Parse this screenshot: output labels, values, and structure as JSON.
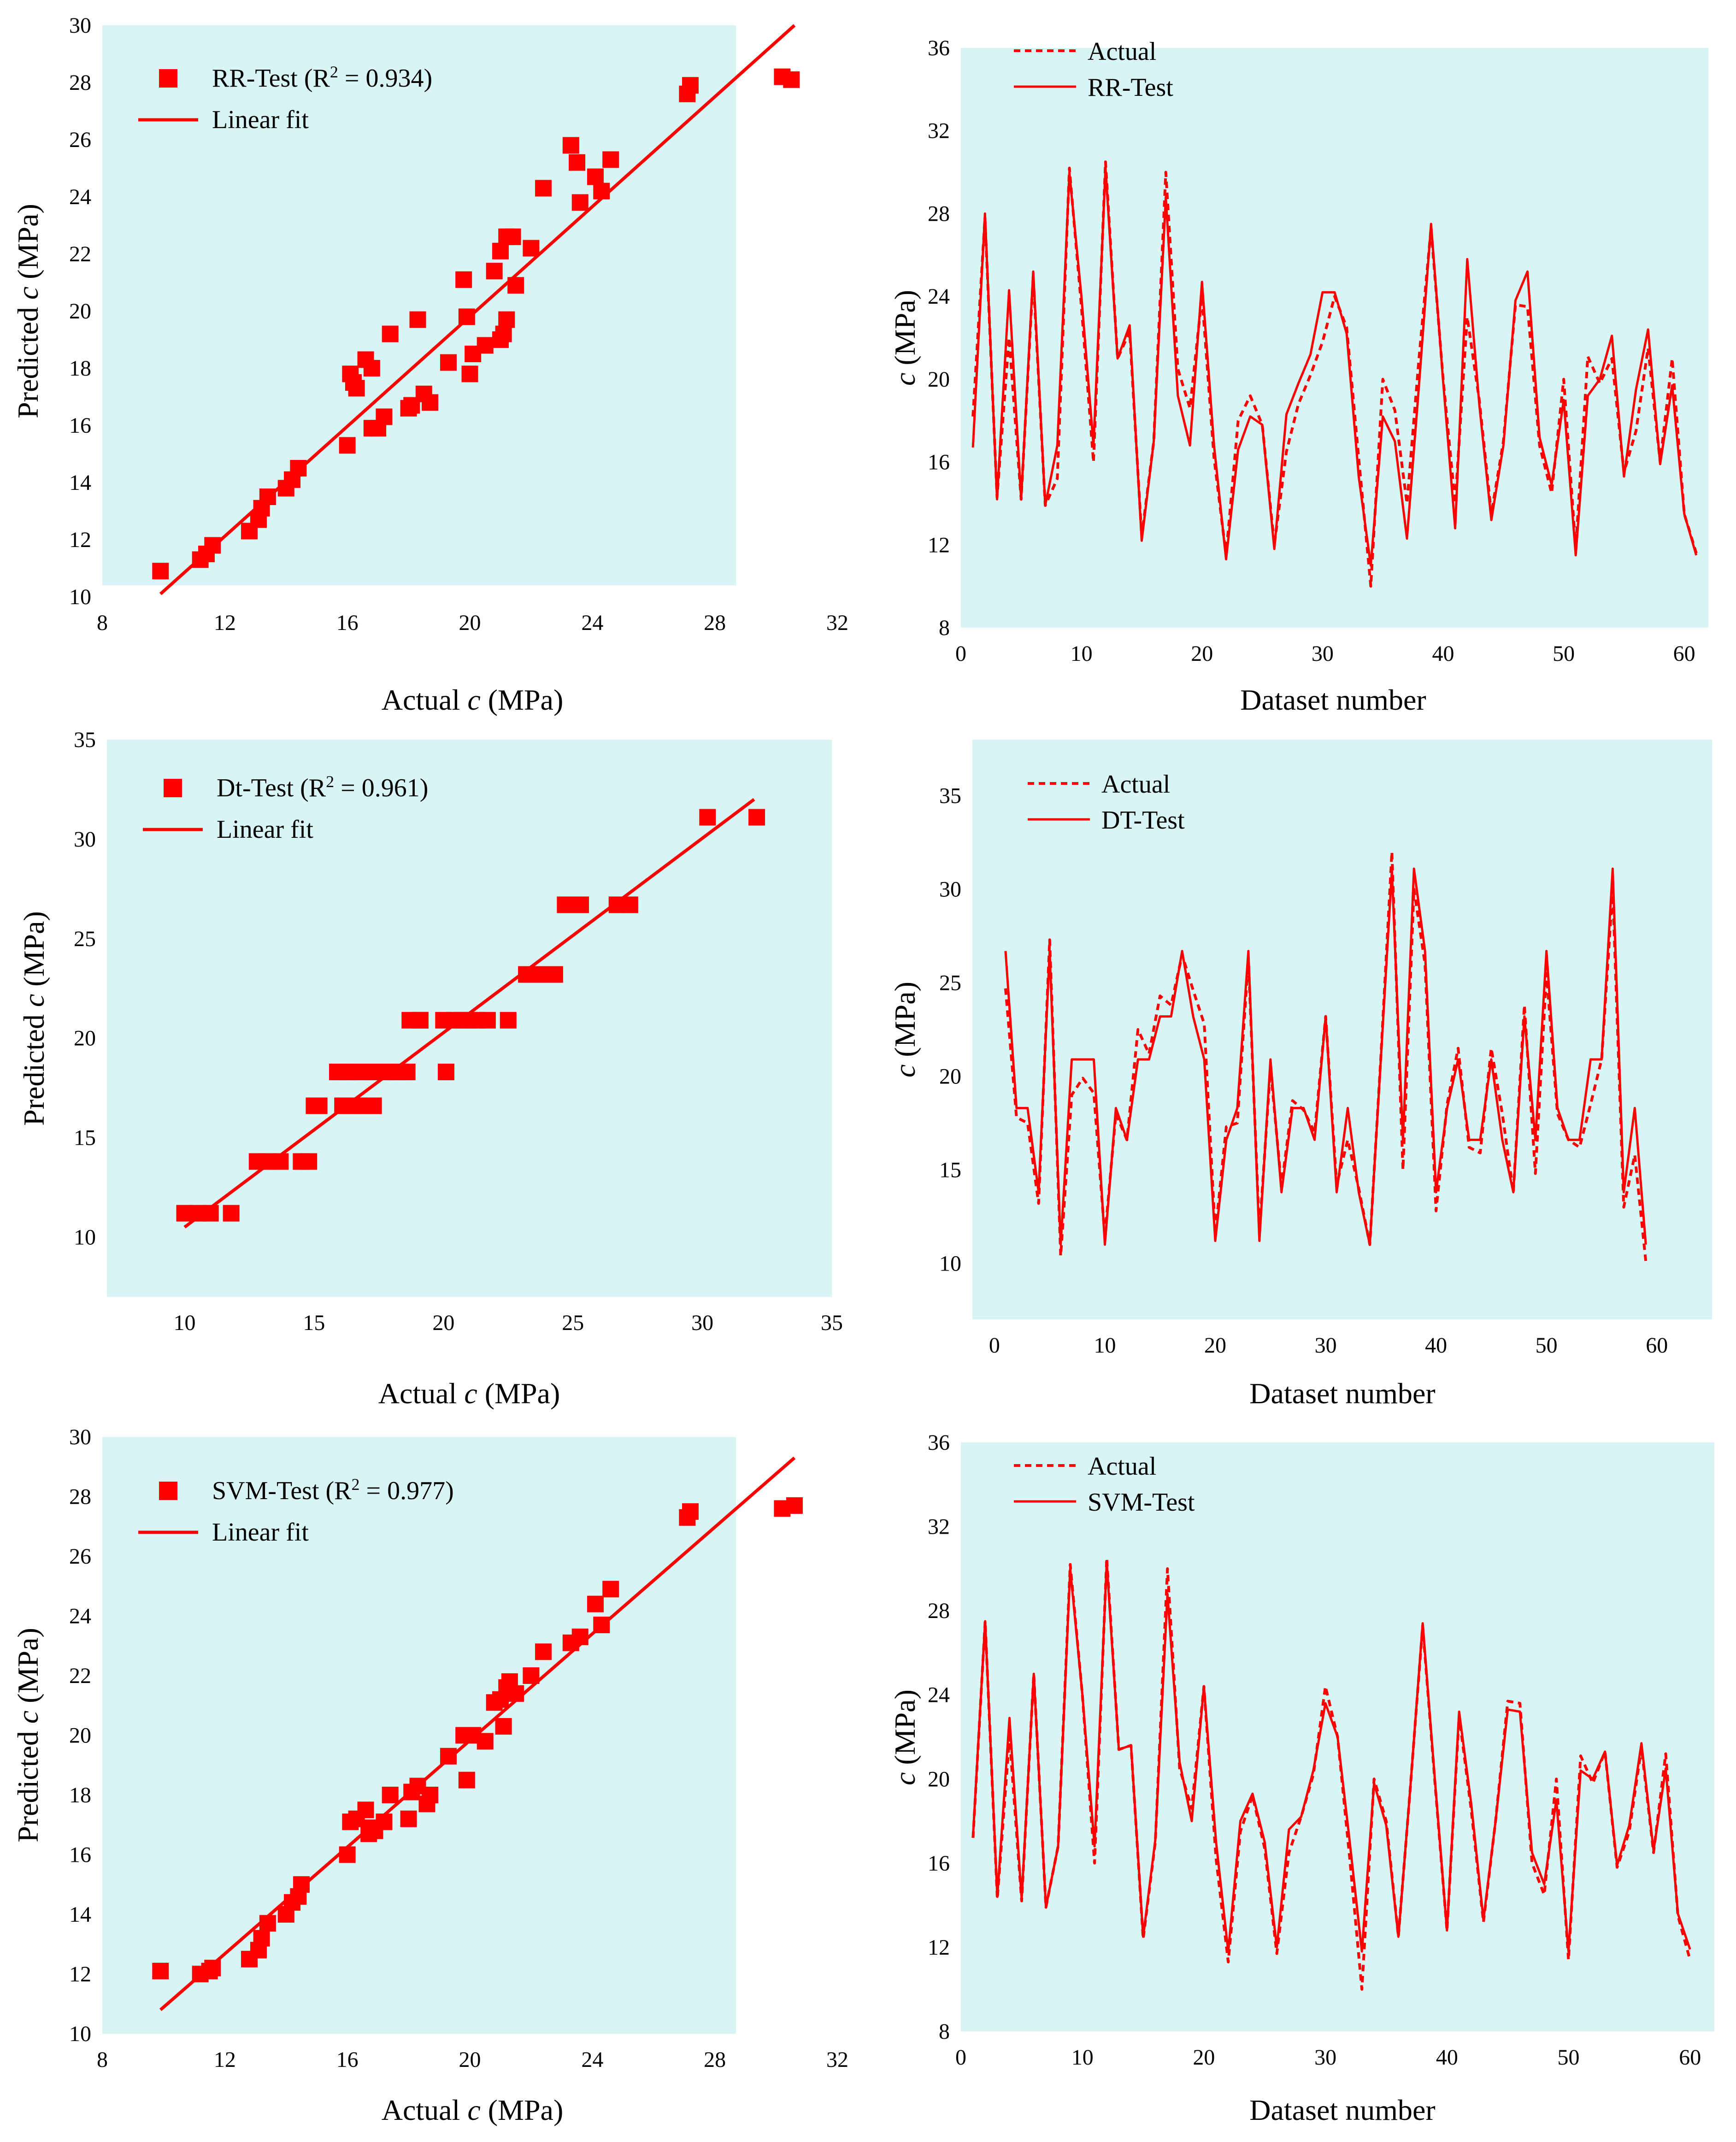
{
  "colors": {
    "series": "#ff0000",
    "panel_bg": "#d8f4f4",
    "axis": "#7f7f7f",
    "text": "#000000"
  },
  "chart_data": [
    {
      "type": "scatter",
      "panel": "rr-scatter",
      "xlabel_pre": "Actual ",
      "xlabel_var": "c",
      "xlabel_post": " (MPa)",
      "ylabel_pre": "Predicted ",
      "ylabel_var": "c",
      "ylabel_post": " (MPa)",
      "xlim": [
        8,
        32
      ],
      "ylim": [
        10,
        30
      ],
      "xticks": [
        "8",
        "12",
        "16",
        "20",
        "24",
        "28",
        "32"
      ],
      "yticks": [
        "10",
        "12",
        "14",
        "16",
        "18",
        "20",
        "22",
        "24",
        "26",
        "28",
        "30"
      ],
      "legend": {
        "marker_pre": "RR-Test (R",
        "marker_sup": "2",
        "marker_post": " = 0.934)",
        "line": "Linear fit"
      },
      "fit": {
        "x": [
          9.9,
          30.6
        ],
        "y": [
          10.1,
          30.0
        ]
      },
      "points": [
        [
          9.9,
          10.9
        ],
        [
          11.2,
          11.3
        ],
        [
          11.4,
          11.5
        ],
        [
          11.6,
          11.8
        ],
        [
          12.8,
          12.3
        ],
        [
          13.1,
          12.7
        ],
        [
          13.2,
          13.1
        ],
        [
          13.4,
          13.5
        ],
        [
          14.0,
          13.8
        ],
        [
          14.2,
          14.1
        ],
        [
          14.4,
          14.5
        ],
        [
          16.0,
          15.3
        ],
        [
          16.1,
          17.8
        ],
        [
          16.2,
          17.5
        ],
        [
          16.3,
          17.3
        ],
        [
          16.6,
          18.3
        ],
        [
          16.8,
          18.0
        ],
        [
          16.8,
          15.9
        ],
        [
          17.0,
          15.9
        ],
        [
          17.2,
          16.3
        ],
        [
          17.4,
          19.2
        ],
        [
          18.0,
          16.6
        ],
        [
          18.1,
          16.7
        ],
        [
          18.3,
          19.7
        ],
        [
          18.5,
          17.1
        ],
        [
          18.7,
          16.8
        ],
        [
          19.3,
          18.2
        ],
        [
          19.8,
          21.1
        ],
        [
          19.9,
          19.8
        ],
        [
          20.0,
          17.8
        ],
        [
          20.1,
          18.5
        ],
        [
          20.5,
          18.8
        ],
        [
          20.8,
          21.4
        ],
        [
          21.0,
          22.1
        ],
        [
          21.0,
          19.0
        ],
        [
          21.1,
          19.2
        ],
        [
          21.2,
          19.7
        ],
        [
          21.2,
          22.6
        ],
        [
          21.4,
          22.6
        ],
        [
          21.5,
          20.9
        ],
        [
          22.0,
          22.2
        ],
        [
          22.4,
          24.3
        ],
        [
          23.3,
          25.8
        ],
        [
          23.5,
          25.2
        ],
        [
          23.6,
          23.8
        ],
        [
          24.1,
          24.7
        ],
        [
          24.3,
          24.2
        ],
        [
          24.6,
          25.3
        ],
        [
          27.1,
          27.6
        ],
        [
          27.2,
          27.9
        ],
        [
          30.2,
          28.2
        ],
        [
          30.5,
          28.1
        ]
      ]
    },
    {
      "type": "line",
      "panel": "rr-line",
      "xlabel": "Dataset number",
      "ylabel_var": "c",
      "ylabel_post": " (MPa)",
      "xlim": [
        0,
        62
      ],
      "ylim": [
        8,
        36
      ],
      "xticks": [
        "0",
        "10",
        "20",
        "30",
        "40",
        "50",
        "60"
      ],
      "yticks": [
        "8",
        "12",
        "16",
        "20",
        "24",
        "28",
        "32",
        "36"
      ],
      "series": [
        {
          "name": "Actual",
          "style": "dashed",
          "values": [
            18.2,
            27.8,
            14.3,
            22.0,
            14.2,
            25.0,
            13.9,
            15.2,
            30.2,
            23.5,
            16.0,
            30.5,
            21.0,
            22.3,
            12.4,
            17.0,
            30.0,
            20.5,
            18.6,
            24.0,
            16.2,
            11.5,
            18.0,
            19.2,
            17.8,
            12.0,
            16.5,
            18.8,
            20.2,
            21.8,
            24.0,
            22.5,
            16.2,
            10.0,
            20.0,
            18.5,
            14.0,
            21.0,
            27.3,
            20.0,
            14.0,
            23.0,
            19.0,
            13.5,
            17.0,
            23.6,
            23.5,
            16.8,
            14.5,
            20.0,
            11.8,
            21.1,
            19.8,
            21.0,
            15.5,
            17.5,
            21.5,
            16.0,
            21.0,
            13.5,
            11.6
          ]
        },
        {
          "name": "RR-Test",
          "style": "solid",
          "values": [
            16.7,
            28.0,
            14.2,
            24.3,
            14.2,
            25.2,
            13.9,
            16.8,
            30.0,
            24.0,
            16.8,
            30.2,
            21.0,
            22.6,
            12.2,
            17.0,
            28.8,
            19.2,
            16.8,
            24.7,
            16.8,
            11.3,
            16.6,
            18.2,
            17.8,
            11.8,
            18.3,
            19.8,
            21.2,
            24.2,
            24.2,
            22.2,
            15.3,
            11.0,
            18.2,
            17.0,
            12.3,
            19.7,
            27.5,
            19.9,
            12.8,
            25.8,
            18.8,
            13.2,
            16.8,
            23.8,
            25.2,
            17.2,
            14.9,
            19.0,
            11.5,
            19.2,
            20.0,
            22.1,
            15.3,
            19.5,
            22.4,
            15.9,
            19.7,
            13.5,
            11.5
          ]
        }
      ],
      "legend": [
        "Actual",
        "RR-Test"
      ]
    },
    {
      "type": "scatter",
      "panel": "dt-scatter",
      "xlabel_pre": "Actual ",
      "xlabel_var": "c",
      "xlabel_post": " (MPa)",
      "ylabel_pre": "Predicted ",
      "ylabel_var": "c",
      "ylabel_post": " (MPa)",
      "xlim": [
        7,
        35
      ],
      "ylim": [
        7,
        35
      ],
      "xticks": [
        "10",
        "15",
        "20",
        "25",
        "30",
        "35"
      ],
      "xtick_values": [
        10,
        15,
        20,
        25,
        30,
        35
      ],
      "yticks": [
        "10",
        "15",
        "20",
        "25",
        "30",
        "35"
      ],
      "ytick_values": [
        10,
        15,
        20,
        25,
        30,
        35
      ],
      "legend": {
        "marker_pre": "Dt-Test (R",
        "marker_sup": "2",
        "marker_post": " = 0.961)",
        "line": "Linear fit"
      },
      "fit": {
        "x": [
          10.0,
          32.0
        ],
        "y": [
          10.5,
          32.0
        ]
      },
      "points": [
        [
          10.0,
          11.2
        ],
        [
          10.5,
          11.2
        ],
        [
          11.0,
          11.2
        ],
        [
          11.8,
          11.2
        ],
        [
          12.8,
          13.8
        ],
        [
          13.2,
          13.8
        ],
        [
          13.7,
          13.8
        ],
        [
          14.5,
          13.8
        ],
        [
          14.8,
          13.8
        ],
        [
          15.0,
          16.6
        ],
        [
          15.2,
          16.6
        ],
        [
          15.9,
          18.3
        ],
        [
          16.1,
          16.6
        ],
        [
          16.3,
          18.3
        ],
        [
          16.5,
          16.6
        ],
        [
          16.7,
          18.3
        ],
        [
          16.9,
          16.6
        ],
        [
          17.3,
          16.6
        ],
        [
          17.3,
          18.3
        ],
        [
          17.8,
          18.3
        ],
        [
          18.2,
          18.3
        ],
        [
          18.6,
          18.3
        ],
        [
          18.7,
          20.9
        ],
        [
          19.1,
          20.9
        ],
        [
          19.1,
          20.9
        ],
        [
          20.0,
          20.9
        ],
        [
          20.1,
          18.3
        ],
        [
          20.4,
          20.9
        ],
        [
          20.7,
          20.9
        ],
        [
          21.0,
          20.9
        ],
        [
          21.3,
          20.9
        ],
        [
          21.7,
          20.9
        ],
        [
          22.5,
          20.9
        ],
        [
          23.2,
          23.2
        ],
        [
          23.7,
          23.2
        ],
        [
          24.3,
          23.2
        ],
        [
          24.7,
          26.7
        ],
        [
          25.3,
          26.7
        ],
        [
          26.7,
          26.7
        ],
        [
          27.2,
          26.7
        ],
        [
          30.2,
          31.1
        ],
        [
          32.1,
          31.1
        ]
      ]
    },
    {
      "type": "line",
      "panel": "dt-line",
      "xlabel": "Dataset number",
      "ylabel_var": "c",
      "ylabel_post": " (MPa)",
      "xlim": [
        -2,
        65
      ],
      "ylim": [
        7,
        38
      ],
      "xticks": [
        "0",
        "10",
        "20",
        "30",
        "40",
        "50",
        "60"
      ],
      "xtick_values": [
        0,
        10,
        20,
        30,
        40,
        50,
        60
      ],
      "yticks": [
        "10",
        "15",
        "20",
        "25",
        "30",
        "35"
      ],
      "ytick_values": [
        10,
        15,
        20,
        25,
        30,
        35
      ],
      "series": [
        {
          "name": "Actual",
          "style": "dashed",
          "values": [
            24.7,
            17.8,
            17.5,
            13.2,
            27.3,
            10.4,
            19.0,
            19.9,
            19.1,
            11.4,
            18.0,
            16.6,
            22.5,
            21.2,
            24.3,
            23.8,
            26.5,
            24.6,
            22.8,
            11.6,
            17.3,
            17.5,
            26.3,
            11.6,
            20.5,
            14.1,
            18.7,
            18.2,
            17.0,
            23.2,
            14.2,
            16.6,
            14.0,
            11.0,
            21.0,
            32.0,
            15.0,
            30.0,
            26.0,
            12.8,
            18.5,
            21.5,
            16.2,
            15.9,
            21.5,
            18.0,
            13.8,
            23.8,
            14.8,
            25.5,
            18.0,
            16.6,
            16.2,
            18.5,
            20.9,
            30.0,
            13.0,
            15.8,
            10.1
          ]
        },
        {
          "name": "DT-Test",
          "style": "solid",
          "values": [
            26.7,
            18.3,
            18.3,
            13.8,
            26.7,
            11.0,
            20.9,
            20.9,
            20.9,
            11.0,
            18.3,
            16.6,
            20.9,
            20.9,
            23.2,
            23.2,
            26.7,
            23.2,
            20.9,
            11.2,
            16.6,
            18.3,
            26.7,
            11.2,
            20.9,
            13.8,
            18.3,
            18.3,
            16.6,
            23.2,
            13.8,
            18.3,
            13.8,
            11.0,
            20.9,
            31.0,
            16.6,
            31.1,
            26.7,
            13.8,
            18.3,
            20.9,
            16.6,
            16.6,
            20.9,
            16.6,
            13.8,
            23.2,
            16.6,
            26.7,
            18.3,
            16.6,
            16.6,
            20.9,
            20.9,
            31.1,
            13.8,
            18.3,
            11.0
          ]
        }
      ],
      "legend": [
        "Actual",
        "DT-Test"
      ]
    },
    {
      "type": "scatter",
      "panel": "svm-scatter",
      "xlabel_pre": "Actual ",
      "xlabel_var": "c",
      "xlabel_post": " (MPa)",
      "ylabel_pre": "Predicted ",
      "ylabel_var": "c",
      "ylabel_post": " (MPa)",
      "xlim": [
        8,
        32
      ],
      "ylim": [
        10,
        30
      ],
      "xticks": [
        "8",
        "12",
        "16",
        "20",
        "24",
        "28",
        "32"
      ],
      "yticks": [
        "10",
        "12",
        "14",
        "16",
        "18",
        "20",
        "22",
        "24",
        "26",
        "28",
        "30"
      ],
      "legend": {
        "marker_pre": "SVM-Test (R",
        "marker_sup": "2",
        "marker_post": " = 0.977)",
        "line": "Linear fit"
      },
      "fit": {
        "x": [
          9.9,
          30.6
        ],
        "y": [
          10.8,
          29.3
        ]
      },
      "points": [
        [
          9.9,
          12.1
        ],
        [
          11.2,
          12.0
        ],
        [
          11.5,
          12.1
        ],
        [
          11.6,
          12.2
        ],
        [
          12.8,
          12.5
        ],
        [
          13.1,
          12.8
        ],
        [
          13.2,
          13.2
        ],
        [
          13.4,
          13.7
        ],
        [
          14.0,
          14.0
        ],
        [
          14.2,
          14.4
        ],
        [
          14.4,
          14.6
        ],
        [
          14.5,
          15.0
        ],
        [
          16.0,
          16.0
        ],
        [
          16.1,
          17.1
        ],
        [
          16.3,
          17.2
        ],
        [
          16.6,
          17.5
        ],
        [
          16.7,
          16.7
        ],
        [
          16.8,
          16.9
        ],
        [
          16.9,
          16.8
        ],
        [
          17.2,
          17.1
        ],
        [
          17.4,
          18.0
        ],
        [
          18.0,
          17.2
        ],
        [
          18.1,
          18.1
        ],
        [
          18.3,
          18.3
        ],
        [
          18.6,
          17.7
        ],
        [
          18.7,
          18.0
        ],
        [
          19.3,
          19.3
        ],
        [
          19.8,
          20.0
        ],
        [
          19.9,
          18.5
        ],
        [
          20.1,
          20.0
        ],
        [
          20.5,
          19.8
        ],
        [
          20.8,
          21.1
        ],
        [
          21.0,
          21.2
        ],
        [
          21.1,
          20.3
        ],
        [
          21.2,
          21.6
        ],
        [
          21.3,
          21.8
        ],
        [
          21.5,
          21.4
        ],
        [
          22.0,
          22.0
        ],
        [
          22.4,
          22.8
        ],
        [
          23.3,
          23.1
        ],
        [
          23.6,
          23.3
        ],
        [
          24.1,
          24.4
        ],
        [
          24.3,
          23.7
        ],
        [
          24.6,
          24.9
        ],
        [
          27.1,
          27.3
        ],
        [
          27.2,
          27.5
        ],
        [
          30.2,
          27.6
        ],
        [
          30.6,
          27.7
        ]
      ]
    },
    {
      "type": "line",
      "panel": "svm-line",
      "xlabel": "Dataset number",
      "ylabel_var": "c",
      "ylabel_post": " (MPa)",
      "xlim": [
        0,
        62
      ],
      "ylim": [
        8,
        36
      ],
      "xticks": [
        "0",
        "10",
        "20",
        "30",
        "40",
        "50",
        "60"
      ],
      "yticks": [
        "8",
        "12",
        "16",
        "20",
        "24",
        "28",
        "32",
        "36"
      ],
      "series": [
        {
          "name": "Actual",
          "style": "dashed",
          "values": [
            17.2,
            27.5,
            14.3,
            22.0,
            14.2,
            25.0,
            13.9,
            16.8,
            30.2,
            24.0,
            16.0,
            30.5,
            21.4,
            21.6,
            12.4,
            17.0,
            30.0,
            20.5,
            18.6,
            24.4,
            16.2,
            11.3,
            17.5,
            19.2,
            16.7,
            11.7,
            16.5,
            18.2,
            20.2,
            24.4,
            22.0,
            16.2,
            10.0,
            20.0,
            18.0,
            12.5,
            19.7,
            27.3,
            19.9,
            12.8,
            23.0,
            18.5,
            13.2,
            18.0,
            23.7,
            23.6,
            16.0,
            14.5,
            20.0,
            11.4,
            21.1,
            19.8,
            21.3,
            15.8,
            17.5,
            21.5,
            16.5,
            21.2,
            13.5,
            11.4
          ]
        },
        {
          "name": "SVM-Test",
          "style": "solid",
          "values": [
            17.3,
            27.5,
            14.4,
            22.9,
            14.3,
            25.0,
            13.9,
            16.8,
            30.0,
            24.0,
            16.8,
            30.3,
            21.4,
            21.6,
            12.5,
            17.1,
            28.8,
            20.8,
            18.0,
            24.4,
            17.0,
            11.8,
            18.0,
            19.3,
            17.0,
            12.0,
            17.6,
            18.2,
            20.4,
            23.6,
            22.0,
            17.0,
            11.8,
            19.8,
            17.8,
            12.5,
            19.7,
            27.4,
            20.0,
            12.8,
            23.2,
            18.8,
            13.3,
            18.0,
            23.3,
            23.2,
            16.5,
            15.0,
            19.0,
            11.8,
            20.4,
            20.0,
            21.3,
            15.9,
            17.8,
            21.7,
            16.6,
            20.5,
            13.6,
            11.9
          ]
        }
      ],
      "legend": [
        "Actual",
        "SVM-Test"
      ]
    }
  ]
}
